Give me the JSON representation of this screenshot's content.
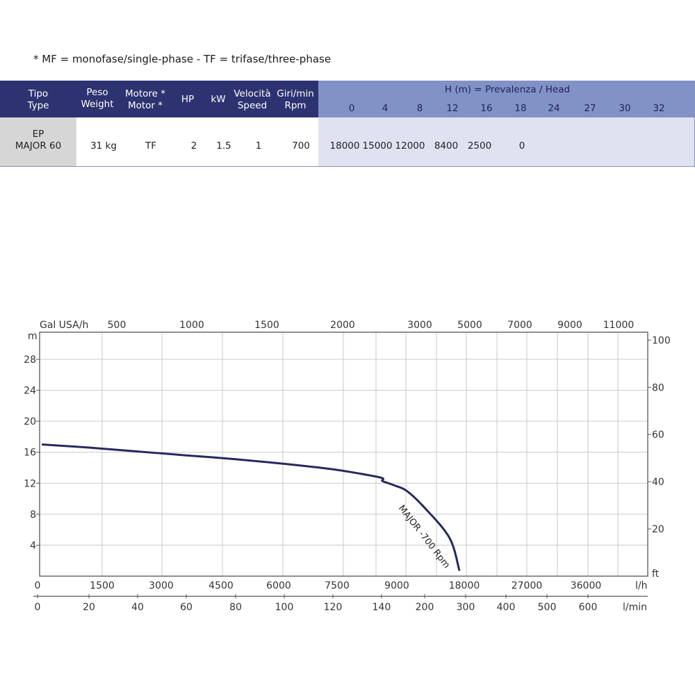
{
  "note": "* MF = monofase/single-phase - TF = trifase/three-phase",
  "table": {
    "headers": [
      {
        "l1": "Tipo",
        "l2": "Type"
      },
      {
        "l1": "Peso",
        "l2": "Weight"
      },
      {
        "l1": "Motore *",
        "l2": "Motor *"
      },
      {
        "l1": "HP",
        "l2": ""
      },
      {
        "l1": "kW",
        "l2": ""
      },
      {
        "l1": "Velocità",
        "l2": "Speed"
      },
      {
        "l1": "Giri/min",
        "l2": "Rpm"
      }
    ],
    "head_title": "H (m) = Prevalenza /  Head",
    "head_values": [
      "0",
      "4",
      "8",
      "12",
      "16",
      "18",
      "24",
      "27",
      "30",
      "32"
    ],
    "row": {
      "type_l1": "EP",
      "type_l2": "MAJOR 60",
      "weight": "31 kg",
      "motor": "TF",
      "hp": "2",
      "kw": "1.5",
      "speed": "1",
      "rpm": "700",
      "flows": [
        "18000",
        "15000",
        "12000",
        "8400",
        "2500",
        "0",
        "",
        "",
        "",
        ""
      ]
    }
  },
  "colors": {
    "header_dark": "#2d3271",
    "header_light": "#8192c6",
    "row_light": "#dfe2f1",
    "type_cell": "#d6d6d6",
    "curve": "#25285e",
    "grid": "#c9c9c9"
  },
  "chart_data": {
    "type": "line",
    "title": "",
    "left_axis_label": "m",
    "right_axis_label": "ft",
    "left_ticks": [
      "4",
      "8",
      "12",
      "16",
      "20",
      "24",
      "28"
    ],
    "right_ticks": [
      "20",
      "40",
      "60",
      "80",
      "100"
    ],
    "top_axis_label": "Gal USA/h",
    "top_ticks": [
      "500",
      "1000",
      "1500",
      "2000",
      "3000",
      "5000",
      "7000",
      "9000",
      "11000"
    ],
    "bottom_lh_label": "l/h",
    "bottom_lh_ticks": [
      "0",
      "1500",
      "3000",
      "4500",
      "6000",
      "7500",
      "9000",
      "18000",
      "27000",
      "36000"
    ],
    "bottom_lmin_label": "l/min",
    "bottom_lmin_ticks": [
      "0",
      "20",
      "40",
      "60",
      "80",
      "100",
      "120",
      "140",
      "200",
      "300",
      "400",
      "500",
      "600"
    ],
    "ylim": [
      0,
      31.5
    ],
    "series": [
      {
        "name": "MAJOR -700 Rpm",
        "x_lmin": [
          2,
          20,
          40,
          60,
          80,
          100,
          120,
          130,
          140,
          150,
          160,
          170,
          190,
          220,
          270,
          290
        ],
        "y_m": [
          17,
          16.6,
          16.1,
          15.6,
          15.1,
          14.5,
          13.8,
          13.3,
          12.7,
          12.3,
          12.0,
          11.7,
          11.0,
          9.0,
          5.0,
          0.8
        ]
      }
    ]
  }
}
